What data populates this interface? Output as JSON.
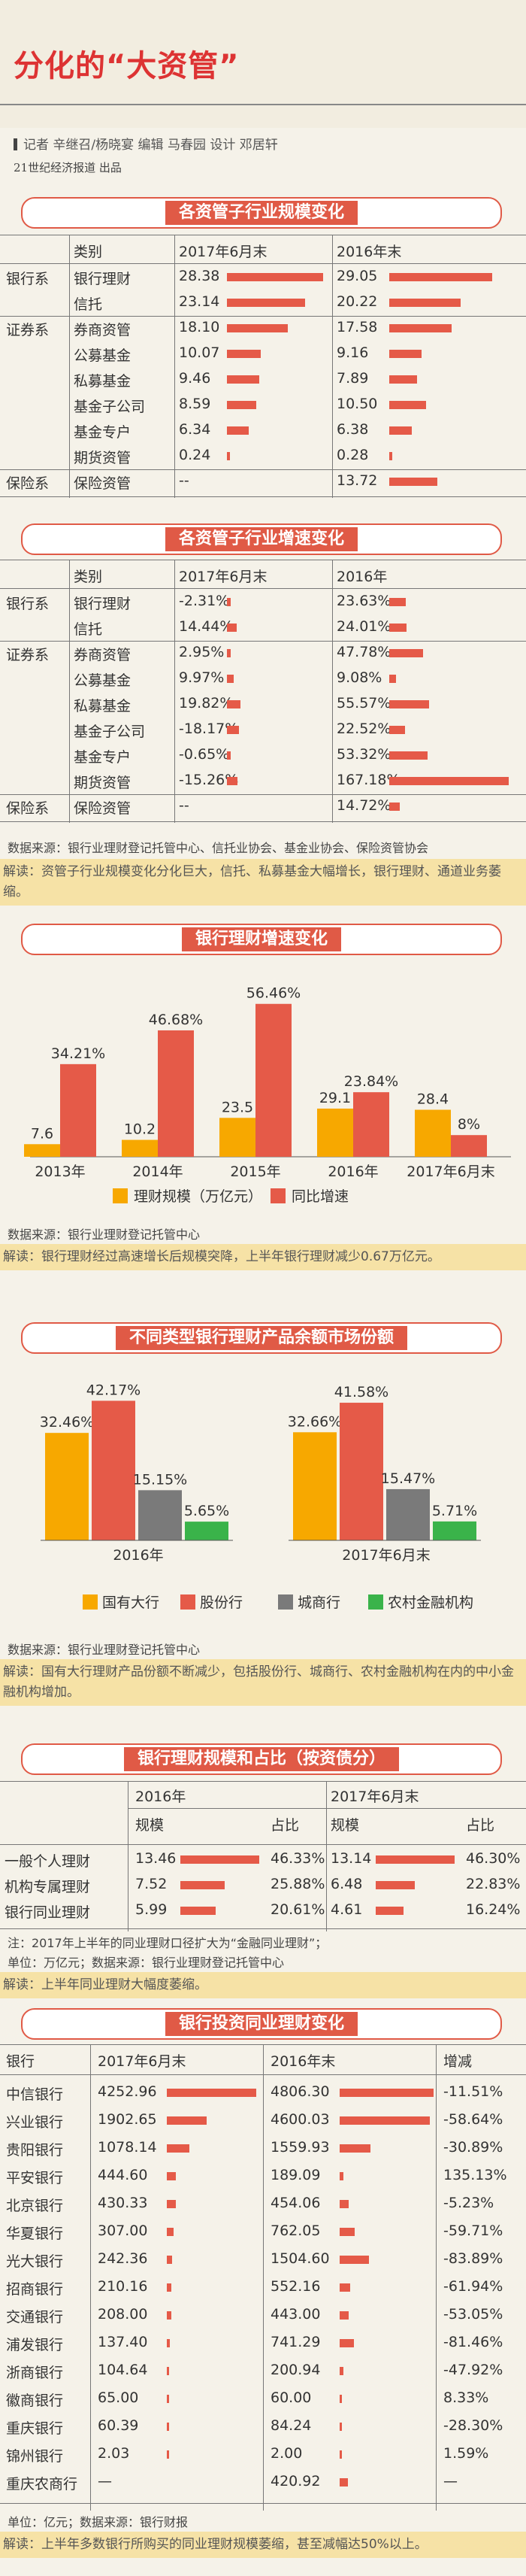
{
  "header": {
    "title": "分化的“大资管”",
    "byline": "记者  辛继召/杨晓宴  编辑  马春园  设计  邓居轩",
    "source": "21世纪经济报道  出品"
  },
  "colors": {
    "accent_red": "#e55a48",
    "orange": "#f7a800",
    "gray": "#7a7a7a",
    "green": "#3ab34a",
    "interp_bg": "#f6e2a6"
  },
  "table1": {
    "title": "各资管子行业规模变化",
    "headers": [
      "类别",
      "2017年6月末",
      "2016年末"
    ],
    "rows": [
      {
        "group": "银行系",
        "name": "银行理财",
        "v1": "28.38",
        "v2": "29.05",
        "b1": 28.38,
        "b2": 29.05
      },
      {
        "group": "",
        "name": "信托",
        "v1": "23.14",
        "v2": "20.22",
        "b1": 23.14,
        "b2": 20.22
      },
      {
        "group": "证券系",
        "name": "券商资管",
        "v1": "18.10",
        "v2": "17.58",
        "b1": 18.1,
        "b2": 17.58
      },
      {
        "group": "",
        "name": "公募基金",
        "v1": "10.07",
        "v2": "9.16",
        "b1": 10.07,
        "b2": 9.16
      },
      {
        "group": "",
        "name": "私募基金",
        "v1": "9.46",
        "v2": "7.89",
        "b1": 9.46,
        "b2": 7.89
      },
      {
        "group": "",
        "name": "基金子公司",
        "v1": "8.59",
        "v2": "10.50",
        "b1": 8.59,
        "b2": 10.5
      },
      {
        "group": "",
        "name": "基金专户",
        "v1": "6.34",
        "v2": "6.38",
        "b1": 6.34,
        "b2": 6.38
      },
      {
        "group": "",
        "name": "期货资管",
        "v1": "0.24",
        "v2": "0.28",
        "b1": 0.24,
        "b2": 0.28
      },
      {
        "group": "保险系",
        "name": "保险资管",
        "v1": "--",
        "v2": "13.72",
        "b1": 0,
        "b2": 13.72
      }
    ]
  },
  "table2": {
    "title": "各资管子行业增速变化",
    "headers": [
      "类别",
      "2017年6月末",
      "2016年"
    ],
    "rows": [
      {
        "group": "银行系",
        "name": "银行理财",
        "v1": "-2.31%",
        "v2": "23.63%",
        "b1": -2.31,
        "b2": 23.63
      },
      {
        "group": "",
        "name": "信托",
        "v1": "14.44%",
        "v2": "24.01%",
        "b1": 14.44,
        "b2": 24.01
      },
      {
        "group": "证券系",
        "name": "券商资管",
        "v1": "2.95%",
        "v2": "47.78%",
        "b1": 2.95,
        "b2": 47.78
      },
      {
        "group": "",
        "name": "公募基金",
        "v1": "9.97%",
        "v2": "9.08%",
        "b1": 9.97,
        "b2": 9.08
      },
      {
        "group": "",
        "name": "私募基金",
        "v1": "19.82%",
        "v2": "55.57%",
        "b1": 19.82,
        "b2": 55.57
      },
      {
        "group": "",
        "name": "基金子公司",
        "v1": "-18.17%",
        "v2": "22.52%",
        "b1": -18.17,
        "b2": 22.52
      },
      {
        "group": "",
        "name": "基金专户",
        "v1": "-0.65%",
        "v2": "53.32%",
        "b1": -0.65,
        "b2": 53.32
      },
      {
        "group": "",
        "name": "期货资管",
        "v1": "-15.26%",
        "v2": "167.18%",
        "b1": -15.26,
        "b2": 167.18
      },
      {
        "group": "保险系",
        "name": "保险资管",
        "v1": "--",
        "v2": "14.72%",
        "b1": 0,
        "b2": 14.72
      }
    ],
    "source": "数据来源：银行业理财登记托管中心、信托业协会、基金业协会、保险资管协会",
    "interp": "解读：资管子行业规模变化分化巨大，信托、私募基金大幅增长，银行理财、通道业务萎缩。"
  },
  "chart1": {
    "title": "银行理财增速变化",
    "source": "数据来源：银行业理财登记托管中心",
    "interp": "解读：银行理财经过高速增长后规模突降，上半年银行理财减少0.67万亿元。"
  },
  "chart2": {
    "title": "不同类型银行理财产品余额市场份额",
    "source": "数据来源：银行业理财登记托管中心",
    "interp": "解读：国有大行理财产品份额不断减少，包括股份行、城商行、农村金融机构在内的中小金融机构增加。"
  },
  "chart_data": [
    {
      "type": "bar",
      "categories": [
        "2013年",
        "2014年",
        "2015年",
        "2016年",
        "2017年6月末"
      ],
      "series": [
        {
          "name": "理财规模（万亿元）",
          "values": [
            7.6,
            10.2,
            23.5,
            29.1,
            28.4
          ],
          "labels": [
            "7.6",
            "10.2",
            "23.5",
            "29.1",
            "28.4"
          ],
          "color": "#f7a800"
        },
        {
          "name": "同比增速",
          "values": [
            34.21,
            46.68,
            56.46,
            23.84,
            8
          ],
          "labels": [
            "34.21%",
            "46.68%",
            "56.46%",
            "23.84%",
            "8%"
          ],
          "color": "#e55a48"
        }
      ]
    },
    {
      "type": "bar",
      "categories": [
        "2016年",
        "2017年6月末"
      ],
      "series": [
        {
          "name": "国有大行",
          "values": [
            32.46,
            32.66
          ],
          "labels": [
            "32.46%",
            "32.66%"
          ],
          "color": "#f7a800"
        },
        {
          "name": "股份行",
          "values": [
            42.17,
            41.58
          ],
          "labels": [
            "42.17%",
            "41.58%"
          ],
          "color": "#e55a48"
        },
        {
          "name": "城商行",
          "values": [
            15.15,
            15.47
          ],
          "labels": [
            "15.15%",
            "15.47%"
          ],
          "color": "#7a7a7a"
        },
        {
          "name": "农村金融机构",
          "values": [
            5.65,
            5.71
          ],
          "labels": [
            "5.65%",
            "5.71%"
          ],
          "color": "#3ab34a"
        }
      ]
    }
  ],
  "table3": {
    "title": "银行理财规模和占比（按资债分）",
    "periods": [
      "2016年",
      "2017年6月末"
    ],
    "sub": [
      "规模",
      "占比",
      "规模",
      "占比"
    ],
    "rows": [
      {
        "name": "一般个人理财",
        "s1": "13.46",
        "p1": "46.33%",
        "s2": "13.14",
        "p2": "46.30%",
        "b1": 13.46,
        "b2": 13.14
      },
      {
        "name": "机构专属理财",
        "s1": "7.52",
        "p1": "25.88%",
        "s2": "6.48",
        "p2": "22.83%",
        "b1": 7.52,
        "b2": 6.48
      },
      {
        "name": "银行同业理财",
        "s1": "5.99",
        "p1": "20.61%",
        "s2": "4.61",
        "p2": "16.24%",
        "b1": 5.99,
        "b2": 4.61
      }
    ],
    "note1": "注：2017年上半年的同业理财口径扩大为“金融同业理财”；",
    "note2": "单位：万亿元；数据来源：银行业理财登记托管中心",
    "interp": "解读：上半年同业理财大幅度萎缩。"
  },
  "table4": {
    "title": "银行投资同业理财变化",
    "headers": [
      "银行",
      "2017年6月末",
      "2016年末",
      "增减"
    ],
    "rows": [
      {
        "name": "中信银行",
        "v1": "4252.96",
        "v2": "4806.30",
        "chg": "-11.51%",
        "b1": 4252.96,
        "b2": 4806.3
      },
      {
        "name": "兴业银行",
        "v1": "1902.65",
        "v2": "4600.03",
        "chg": "-58.64%",
        "b1": 1902.65,
        "b2": 4600.03
      },
      {
        "name": "贵阳银行",
        "v1": "1078.14",
        "v2": "1559.93",
        "chg": "-30.89%",
        "b1": 1078.14,
        "b2": 1559.93
      },
      {
        "name": "平安银行",
        "v1": "444.60",
        "v2": "189.09",
        "chg": "135.13%",
        "b1": 444.6,
        "b2": 189.09
      },
      {
        "name": "北京银行",
        "v1": "430.33",
        "v2": "454.06",
        "chg": "-5.23%",
        "b1": 430.33,
        "b2": 454.06
      },
      {
        "name": "华夏银行",
        "v1": "307.00",
        "v2": "762.05",
        "chg": "-59.71%",
        "b1": 307.0,
        "b2": 762.05
      },
      {
        "name": "光大银行",
        "v1": "242.36",
        "v2": "1504.60",
        "chg": "-83.89%",
        "b1": 242.36,
        "b2": 1504.6
      },
      {
        "name": "招商银行",
        "v1": "210.16",
        "v2": "552.16",
        "chg": "-61.94%",
        "b1": 210.16,
        "b2": 552.16
      },
      {
        "name": "交通银行",
        "v1": "208.00",
        "v2": "443.00",
        "chg": "-53.05%",
        "b1": 208.0,
        "b2": 443.0
      },
      {
        "name": "浦发银行",
        "v1": "137.40",
        "v2": "741.29",
        "chg": "-81.46%",
        "b1": 137.4,
        "b2": 741.29
      },
      {
        "name": "浙商银行",
        "v1": "104.64",
        "v2": "200.94",
        "chg": "-47.92%",
        "b1": 104.64,
        "b2": 200.94
      },
      {
        "name": "徽商银行",
        "v1": "65.00",
        "v2": "60.00",
        "chg": "8.33%",
        "b1": 65.0,
        "b2": 60.0
      },
      {
        "name": "重庆银行",
        "v1": "60.39",
        "v2": "84.24",
        "chg": "-28.30%",
        "b1": 60.39,
        "b2": 84.24
      },
      {
        "name": "锦州银行",
        "v1": "2.03",
        "v2": "2.00",
        "chg": "1.59%",
        "b1": 2.03,
        "b2": 2.0
      },
      {
        "name": "重庆农商行",
        "v1": "—",
        "v2": "420.92",
        "chg": "—",
        "b1": 0,
        "b2": 420.92
      }
    ],
    "note": "单位：亿元；数据来源：银行财报",
    "interp": "解读：上半年多数银行所购买的同业理财规模萎缩，甚至减幅达50%以上。"
  }
}
